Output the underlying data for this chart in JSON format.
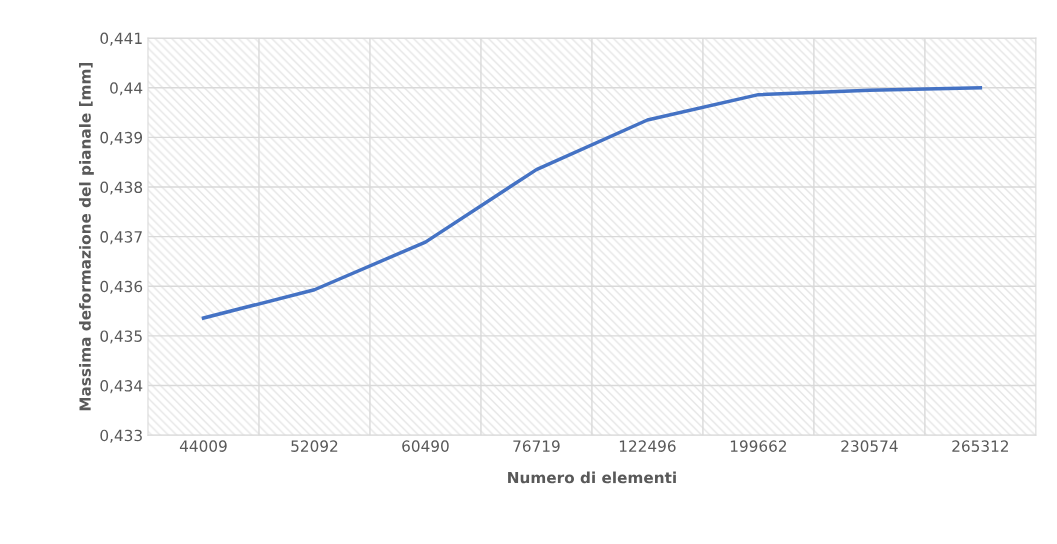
{
  "chart_data": {
    "type": "line",
    "xlabel": "Numero di elementi",
    "ylabel": "Massima deformazione del pianale [mm]",
    "categories": [
      "44009",
      "52092",
      "60490",
      "76719",
      "122496",
      "199662",
      "230574",
      "265312"
    ],
    "series": [
      {
        "color": "#4472c4",
        "values": [
          0.43536,
          0.43593,
          0.43689,
          0.43835,
          0.43935,
          0.43986,
          0.43995,
          0.44
        ]
      }
    ],
    "ylim": [
      0.433,
      0.441
    ],
    "yticks": [
      {
        "value": 0.433,
        "label": "0,433"
      },
      {
        "value": 0.434,
        "label": "0,434"
      },
      {
        "value": 0.435,
        "label": "0,435"
      },
      {
        "value": 0.436,
        "label": "0,436"
      },
      {
        "value": 0.437,
        "label": "0,437"
      },
      {
        "value": 0.438,
        "label": "0,438"
      },
      {
        "value": 0.439,
        "label": "0,439"
      },
      {
        "value": 0.44,
        "label": "0,44"
      },
      {
        "value": 0.441,
        "label": "0,441"
      }
    ],
    "grid": true,
    "legend": false,
    "marker": "none",
    "line_style": "solid"
  }
}
